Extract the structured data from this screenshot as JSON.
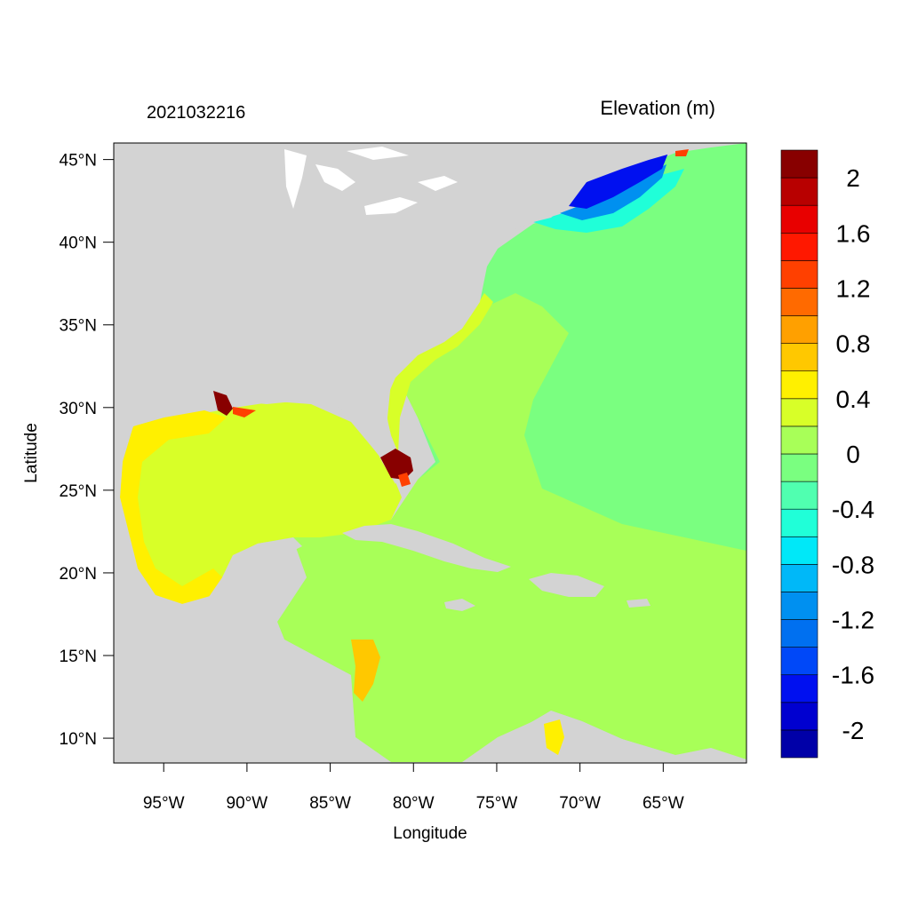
{
  "header": {
    "left_label": "2021032216",
    "right_label": "Elevation (m)"
  },
  "axes": {
    "xlabel": "Longitude",
    "ylabel": "Latitude",
    "x_range": [
      -98,
      -60
    ],
    "y_range": [
      8.5,
      46
    ],
    "x_ticks": [
      {
        "value": -95,
        "label": "95°W"
      },
      {
        "value": -90,
        "label": "90°W"
      },
      {
        "value": -85,
        "label": "85°W"
      },
      {
        "value": -80,
        "label": "80°W"
      },
      {
        "value": -75,
        "label": "75°W"
      },
      {
        "value": -70,
        "label": "70°W"
      },
      {
        "value": -65,
        "label": "65°W"
      }
    ],
    "y_ticks": [
      {
        "value": 45,
        "label": "45°N"
      },
      {
        "value": 40,
        "label": "40°N"
      },
      {
        "value": 35,
        "label": "35°N"
      },
      {
        "value": 30,
        "label": "30°N"
      },
      {
        "value": 25,
        "label": "25°N"
      },
      {
        "value": 20,
        "label": "20°N"
      },
      {
        "value": 15,
        "label": "15°N"
      },
      {
        "value": 10,
        "label": "10°N"
      }
    ]
  },
  "colorbar": {
    "colors": [
      "#0000a8",
      "#0000d0",
      "#0010f0",
      "#0048f8",
      "#0070f0",
      "#0090f0",
      "#00b8f8",
      "#00e8f8",
      "#20ffd8",
      "#50ffb0",
      "#7aff80",
      "#a8ff58",
      "#d8ff28",
      "#fff000",
      "#ffc800",
      "#ffa000",
      "#ff6a00",
      "#ff4000",
      "#ff1800",
      "#e80000",
      "#b80000",
      "#880000"
    ],
    "labels": [
      {
        "value": 2,
        "text": "2"
      },
      {
        "value": 1.6,
        "text": "1.6"
      },
      {
        "value": 1.2,
        "text": "1.2"
      },
      {
        "value": 0.8,
        "text": "0.8"
      },
      {
        "value": 0.4,
        "text": "0.4"
      },
      {
        "value": 0,
        "text": "0"
      },
      {
        "value": -0.4,
        "text": "-0.4"
      },
      {
        "value": -0.8,
        "text": "-0.8"
      },
      {
        "value": -1.2,
        "text": "-1.2"
      },
      {
        "value": -1.6,
        "text": "-1.6"
      },
      {
        "value": -2,
        "text": "-2"
      }
    ]
  },
  "palette": {
    "land": "#d3d3d3",
    "open_ocean": "#7aff80",
    "caribbean": "#a8ff58",
    "gulf": "#d8ff28",
    "coastal_high": "#fff000",
    "surge_max": "#880000",
    "surge_high": "#ff4000",
    "gulf_of_maine": "#0010f0"
  }
}
